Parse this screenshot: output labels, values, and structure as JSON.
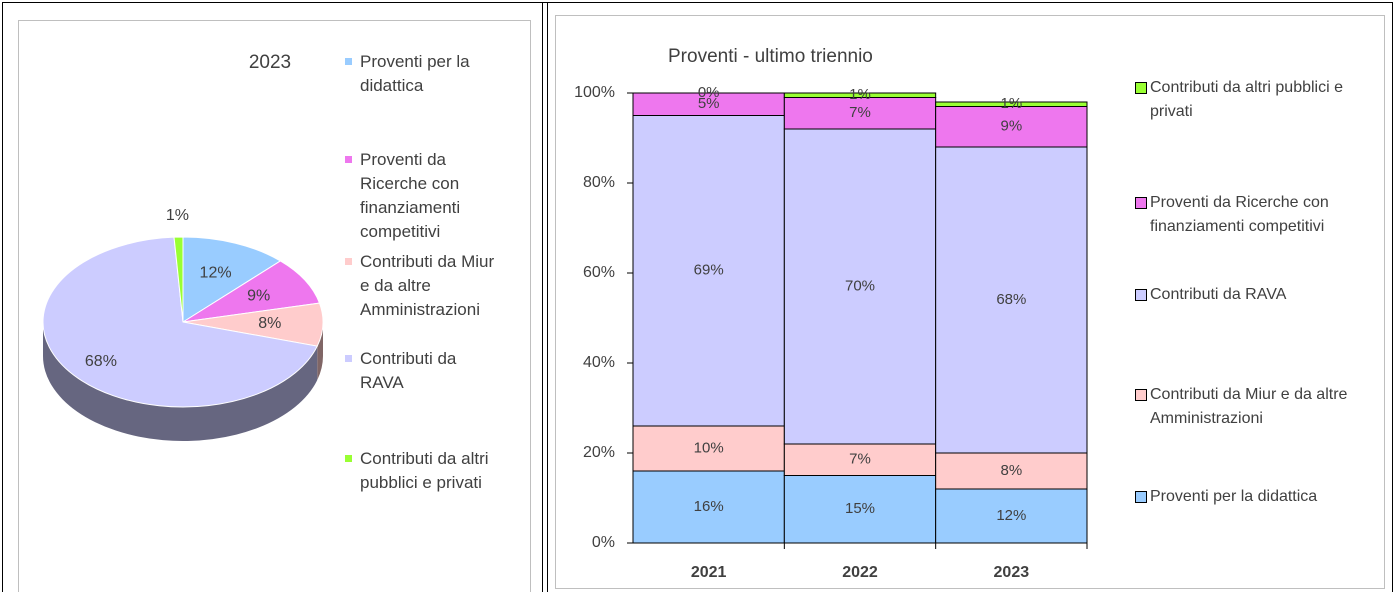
{
  "chart_data": [
    {
      "type": "pie",
      "title": "2023",
      "categories": [
        "Proventi per la didattica",
        "Proventi da Ricerche con finanziamenti competitivi",
        "Contributi da Miur e da altre Amministrazioni",
        "Contributi da RAVA",
        "Contributi da altri pubblici e privati"
      ],
      "values": [
        12,
        9,
        8,
        68,
        1
      ],
      "value_labels": [
        "12%",
        "9%",
        "8%",
        "68%",
        "1%"
      ],
      "colors": [
        "#99ccff",
        "#ee77ee",
        "#ffcccc",
        "#ccccff",
        "#99ff33"
      ],
      "legend": "right"
    },
    {
      "type": "stacked_bar",
      "title": "Proventi - ultimo triennio",
      "categories": [
        "2021",
        "2022",
        "2023"
      ],
      "series": [
        {
          "name": "Proventi per la didattica",
          "color": "#99ccff",
          "values": [
            16,
            15,
            12
          ],
          "value_labels": [
            "16%",
            "15%",
            "12%"
          ]
        },
        {
          "name": "Contributi da Miur e da altre Amministrazioni",
          "color": "#ffcccc",
          "values": [
            10,
            7,
            8
          ],
          "value_labels": [
            "10%",
            "7%",
            "8%"
          ]
        },
        {
          "name": "Contributi da RAVA",
          "color": "#ccccff",
          "values": [
            69,
            70,
            68
          ],
          "value_labels": [
            "69%",
            "70%",
            "68%"
          ]
        },
        {
          "name": "Proventi da Ricerche con finanziamenti competitivi",
          "color": "#ee77ee",
          "values": [
            5,
            7,
            9
          ],
          "value_labels": [
            "5%",
            "7%",
            "9%"
          ]
        },
        {
          "name": "Contributi da altri pubblici e privati",
          "color": "#99ff33",
          "values": [
            0,
            1,
            1
          ],
          "value_labels": [
            "0%",
            "1%",
            "1%"
          ]
        }
      ],
      "ylim": [
        0,
        100
      ],
      "yticks": [
        {
          "value": 0,
          "label": "0%"
        },
        {
          "value": 20,
          "label": "20%"
        },
        {
          "value": 40,
          "label": "40%"
        },
        {
          "value": 60,
          "label": "60%"
        },
        {
          "value": 80,
          "label": "80%"
        },
        {
          "value": 100,
          "label": "100%"
        }
      ],
      "legend": "right"
    }
  ]
}
